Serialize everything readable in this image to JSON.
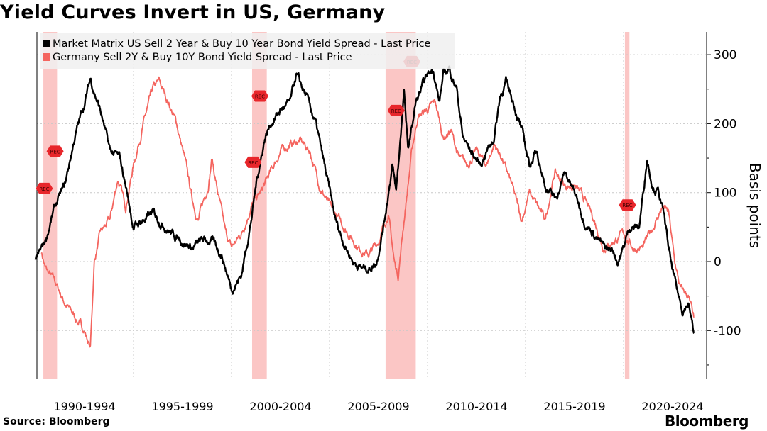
{
  "title": "Yield Curves Invert in US, Germany",
  "source": "Source: Bloomberg",
  "logo": "Bloomberg",
  "chart_data": {
    "type": "line",
    "title": "Yield Curves Invert in US, Germany",
    "ylabel": "Basis points",
    "xlabel": "",
    "ylim": [
      -170,
      333
    ],
    "xlim": [
      1990.0,
      2024.2
    ],
    "yticks": [
      -100,
      0,
      100,
      200,
      300
    ],
    "xtick_labels": [
      "1990-1994",
      "1995-1999",
      "2000-2004",
      "2005-2009",
      "2010-2014",
      "2015-2019",
      "2020-2024"
    ],
    "grid": true,
    "legend_position": "top-left",
    "recession_periods": [
      [
        1990.4,
        1991.1
      ],
      [
        2001.05,
        2001.8
      ],
      [
        2007.86,
        2009.4
      ],
      [
        2020.07,
        2020.3
      ]
    ],
    "recession_marker_label": "REC",
    "series": [
      {
        "name": "Market Matrix US Sell 2 Year & Buy 10 Year Bond Yield Spread - Last Price",
        "color": "#000000",
        "x": [
          1990.0,
          1990.5,
          1991.0,
          1991.5,
          1992.0,
          1992.5,
          1992.8,
          1993.3,
          1993.8,
          1994.3,
          1994.6,
          1995.0,
          1995.5,
          1996.0,
          1996.5,
          1997.0,
          1997.5,
          1998.0,
          1998.5,
          1999.0,
          1999.5,
          2000.0,
          2000.5,
          2001.0,
          2001.3,
          2001.7,
          2002.0,
          2002.5,
          2003.0,
          2003.3,
          2003.8,
          2004.3,
          2004.8,
          2005.3,
          2005.7,
          2006.2,
          2006.7,
          2007.0,
          2007.4,
          2007.8,
          2008.2,
          2008.4,
          2008.6,
          2008.8,
          2009.0,
          2009.4,
          2009.7,
          2010.0,
          2010.3,
          2010.6,
          2010.8,
          2011.1,
          2011.5,
          2011.8,
          2012.2,
          2012.7,
          2013.0,
          2013.4,
          2013.7,
          2014.0,
          2014.4,
          2014.8,
          2015.2,
          2015.6,
          2016.0,
          2016.5,
          2016.8,
          2017.0,
          2017.5,
          2018.0,
          2018.5,
          2019.0,
          2019.5,
          2019.7,
          2020.0,
          2020.3,
          2020.8,
          2021.2,
          2021.5,
          2021.8,
          2022.1,
          2022.4,
          2022.7,
          2023.0,
          2023.3,
          2023.6
        ],
        "values": [
          0,
          30,
          80,
          110,
          180,
          230,
          265,
          220,
          160,
          150,
          110,
          50,
          60,
          70,
          55,
          40,
          30,
          20,
          30,
          30,
          10,
          -40,
          -20,
          60,
          120,
          180,
          200,
          220,
          230,
          270,
          240,
          200,
          130,
          60,
          30,
          0,
          -10,
          -10,
          0,
          60,
          140,
          100,
          170,
          250,
          160,
          230,
          250,
          270,
          280,
          230,
          270,
          280,
          250,
          180,
          160,
          140,
          160,
          180,
          240,
          260,
          230,
          190,
          140,
          160,
          110,
          90,
          110,
          130,
          100,
          60,
          40,
          20,
          15,
          0,
          20,
          50,
          50,
          150,
          110,
          100,
          60,
          0,
          -40,
          -70,
          -60,
          -105
        ]
      },
      {
        "name": "Germany Sell 2Y & Buy 10Y Bond Yield Spread - Last Price",
        "color": "#f4655f",
        "x": [
          1990.3,
          1990.5,
          1991.0,
          1991.5,
          1992.0,
          1992.5,
          1992.8,
          1993.0,
          1993.3,
          1993.8,
          1994.2,
          1994.6,
          1995.0,
          1995.5,
          1996.0,
          1996.3,
          1996.8,
          1997.2,
          1997.6,
          1998.0,
          1998.3,
          1998.8,
          1999.0,
          1999.3,
          1999.7,
          2000.0,
          2000.5,
          2001.0,
          2001.5,
          2002.0,
          2002.5,
          2003.0,
          2003.5,
          2004.0,
          2004.5,
          2005.0,
          2005.5,
          2006.0,
          2006.5,
          2007.0,
          2007.5,
          2008.0,
          2008.3,
          2008.5,
          2008.8,
          2009.2,
          2009.5,
          2010.0,
          2010.4,
          2010.8,
          2011.2,
          2011.6,
          2012.0,
          2012.5,
          2013.0,
          2013.4,
          2013.8,
          2014.3,
          2014.8,
          2015.2,
          2015.6,
          2016.0,
          2016.5,
          2017.0,
          2017.5,
          2018.0,
          2018.5,
          2019.0,
          2019.5,
          2020.0,
          2020.5,
          2021.0,
          2021.5,
          2022.0,
          2022.3,
          2022.6,
          2022.9,
          2023.3,
          2023.6
        ],
        "values": [
          15,
          -10,
          -30,
          -60,
          -80,
          -100,
          -125,
          0,
          40,
          60,
          120,
          80,
          140,
          200,
          250,
          260,
          230,
          200,
          150,
          90,
          60,
          110,
          150,
          100,
          40,
          20,
          40,
          80,
          100,
          130,
          160,
          170,
          175,
          160,
          110,
          80,
          60,
          40,
          20,
          10,
          30,
          70,
          0,
          -20,
          60,
          160,
          210,
          220,
          230,
          180,
          190,
          150,
          140,
          160,
          140,
          170,
          150,
          110,
          60,
          100,
          80,
          60,
          130,
          110,
          110,
          90,
          60,
          20,
          30,
          40,
          20,
          20,
          50,
          80,
          70,
          0,
          -40,
          -50,
          -85
        ]
      }
    ]
  }
}
